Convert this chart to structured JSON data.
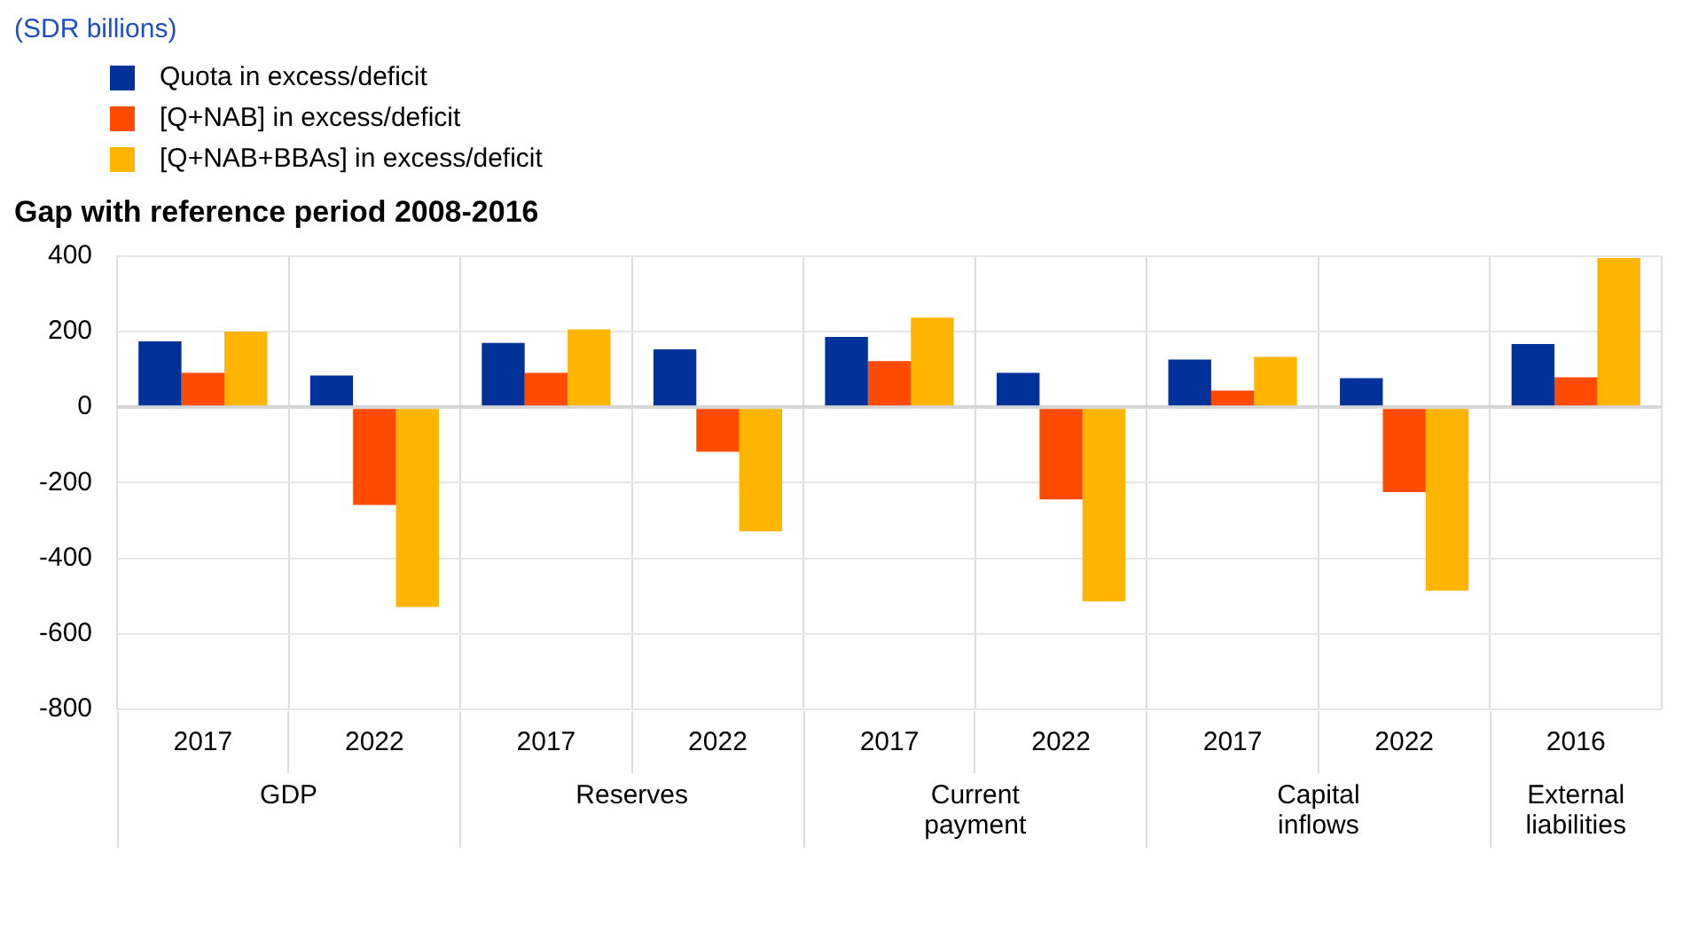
{
  "chart_data": {
    "type": "bar",
    "title": "Gap with reference period 2008-2016",
    "subtitle": "(SDR billions)",
    "categories": [
      "2017",
      "2022",
      "2017",
      "2022",
      "2017",
      "2022",
      "2017",
      "2022",
      "2016"
    ],
    "series": [
      {
        "name": "Quota in excess/deficit",
        "color": "#003299",
        "values": [
          174,
          84,
          170,
          153,
          186,
          91,
          126,
          77,
          167
        ]
      },
      {
        "name": "[Q+NAB] in excess/deficit",
        "color": "#ff4b00",
        "values": [
          91,
          -259,
          91,
          -118,
          122,
          -244,
          44,
          -225,
          79
        ]
      },
      {
        "name": "[Q+NAB+BBAs] in excess/deficit",
        "color": "#ffb400",
        "values": [
          200,
          -529,
          206,
          -329,
          237,
          -514,
          133,
          -486,
          395
        ]
      }
    ],
    "annotations": [
      "GDP",
      "Reserves",
      "Current\npayment",
      "Capital\ninflows",
      "External\nliabilities"
    ],
    "ylim": [
      -800,
      400
    ],
    "yticks": [
      -800,
      -600,
      -400,
      -200,
      0,
      200,
      400
    ],
    "grid": true,
    "legend": "top left"
  }
}
